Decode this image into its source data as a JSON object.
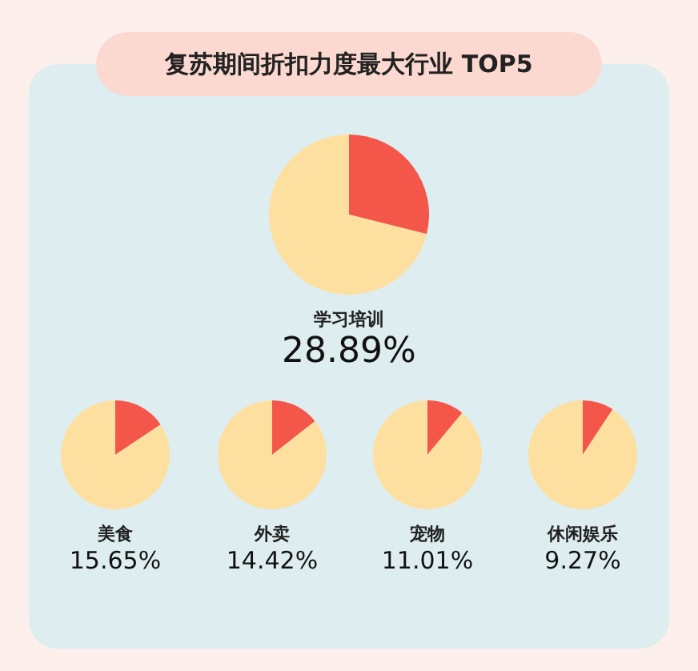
{
  "chart_data": [
    {
      "type": "pie",
      "title": "复苏期间折扣力度最大行业 TOP5",
      "xlabel": "学习培训",
      "categories": [
        null,
        null
      ],
      "values": [
        28.89,
        71.11
      ],
      "colors": [
        "#f5564a",
        "#fde0a0"
      ],
      "annotations": [
        "28.89%"
      ]
    },
    {
      "type": "pie",
      "xlabel": "美食",
      "categories": [
        null,
        null
      ],
      "values": [
        15.65,
        84.35
      ],
      "colors": [
        "#f5564a",
        "#fde0a0"
      ],
      "annotations": [
        "15.65%"
      ]
    },
    {
      "type": "pie",
      "xlabel": "外卖",
      "categories": [
        null,
        null
      ],
      "values": [
        14.42,
        85.58
      ],
      "colors": [
        "#f5564a",
        "#fde0a0"
      ],
      "annotations": [
        "14.42%"
      ]
    },
    {
      "type": "pie",
      "xlabel": "宠物",
      "categories": [
        null,
        null
      ],
      "values": [
        11.01,
        88.99
      ],
      "colors": [
        "#f5564a",
        "#fde0a0"
      ],
      "annotations": [
        "11.01%"
      ]
    },
    {
      "type": "pie",
      "xlabel": "休闲娱乐",
      "categories": [
        null,
        null
      ],
      "values": [
        9.27,
        90.73
      ],
      "colors": [
        "#f5564a",
        "#fde0a0"
      ],
      "annotations": [
        "9.27%"
      ]
    }
  ]
}
